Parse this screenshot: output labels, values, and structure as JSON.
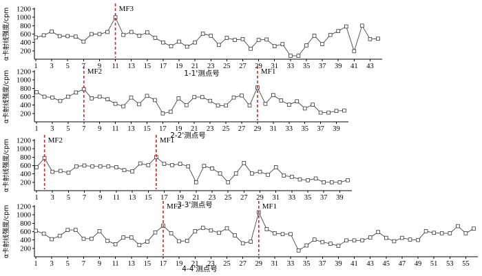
{
  "chart_data": [
    {
      "type": "line",
      "ylabel": "α卡射线强度/cpm",
      "xlabel": "1-1'测点号",
      "ylim": [
        0,
        1200
      ],
      "yticks": [
        200,
        400,
        600,
        800,
        1000,
        1200
      ],
      "x_range": [
        1,
        44
      ],
      "xticks": [
        1,
        3,
        5,
        7,
        9,
        11,
        13,
        15,
        17,
        19,
        21,
        23,
        25,
        27,
        29,
        31,
        33,
        35,
        37,
        39,
        41,
        43
      ],
      "series": [
        {
          "x": [
            1,
            2,
            3,
            4,
            5,
            6,
            7,
            8,
            9,
            10,
            11,
            12,
            13,
            14,
            15,
            16,
            17,
            18,
            19,
            20,
            21,
            22,
            23,
            24,
            25,
            26,
            27,
            28,
            29,
            30,
            31,
            32,
            33,
            34,
            35,
            36,
            37,
            38,
            39,
            40,
            41,
            42,
            43,
            44
          ],
          "values": [
            520,
            570,
            660,
            550,
            550,
            540,
            420,
            600,
            600,
            650,
            1000,
            580,
            650,
            560,
            640,
            510,
            400,
            310,
            420,
            300,
            400,
            610,
            560,
            340,
            510,
            460,
            480,
            250,
            460,
            470,
            310,
            360,
            80,
            80,
            330,
            560,
            360,
            580,
            670,
            780,
            190,
            800,
            480,
            490
          ]
        }
      ],
      "annotations": [
        {
          "label": "MF3",
          "x": 11
        }
      ],
      "grid": false
    },
    {
      "type": "line",
      "ylabel": "α卡射线强度/cpm",
      "xlabel": "2-2'测点号",
      "ylim": [
        0,
        1200
      ],
      "yticks": [
        200,
        400,
        600,
        800,
        1000,
        1200
      ],
      "x_range": [
        1,
        40
      ],
      "xticks": [
        1,
        3,
        5,
        7,
        9,
        11,
        13,
        15,
        17,
        19,
        21,
        23,
        25,
        27,
        29,
        31,
        33,
        35,
        37,
        39
      ],
      "series": [
        {
          "x": [
            1,
            2,
            3,
            4,
            5,
            6,
            7,
            8,
            9,
            10,
            11,
            12,
            13,
            14,
            15,
            16,
            17,
            18,
            19,
            20,
            21,
            22,
            23,
            24,
            25,
            26,
            27,
            28,
            29,
            30,
            31,
            32,
            33,
            34,
            35,
            36,
            37,
            38,
            39,
            40
          ],
          "values": [
            710,
            600,
            580,
            500,
            600,
            700,
            780,
            560,
            600,
            540,
            430,
            370,
            580,
            420,
            620,
            520,
            200,
            240,
            560,
            400,
            590,
            590,
            500,
            390,
            390,
            580,
            630,
            390,
            820,
            430,
            640,
            510,
            410,
            490,
            320,
            410,
            220,
            220,
            260,
            270
          ]
        }
      ],
      "annotations": [
        {
          "label": "MF2",
          "x": 7
        },
        {
          "label": "MF1",
          "x": 29
        }
      ],
      "grid": false
    },
    {
      "type": "line",
      "ylabel": "α卡射线强度/cpm",
      "xlabel": "3-3'测点号",
      "ylim": [
        0,
        1200
      ],
      "yticks": [
        200,
        400,
        600,
        800,
        1000,
        1200
      ],
      "x_range": [
        1,
        40
      ],
      "xticks": [
        1,
        3,
        5,
        7,
        9,
        11,
        13,
        15,
        17,
        19,
        21,
        23,
        25,
        27,
        29,
        31,
        33,
        35,
        37,
        39
      ],
      "series": [
        {
          "x": [
            1,
            2,
            3,
            4,
            5,
            6,
            7,
            8,
            9,
            10,
            11,
            12,
            13,
            14,
            15,
            16,
            17,
            18,
            19,
            20,
            21,
            22,
            23,
            24,
            25,
            26,
            27,
            28,
            29,
            30,
            31,
            32,
            33,
            34,
            35,
            36,
            37,
            38,
            39,
            40
          ],
          "values": [
            560,
            780,
            450,
            470,
            430,
            580,
            600,
            580,
            580,
            580,
            560,
            490,
            460,
            650,
            610,
            800,
            640,
            610,
            640,
            580,
            200,
            590,
            530,
            410,
            200,
            410,
            660,
            410,
            450,
            380,
            560,
            360,
            330,
            270,
            250,
            290,
            200,
            200,
            200,
            250
          ]
        }
      ],
      "annotations": [
        {
          "label": "MF2",
          "x": 2
        },
        {
          "label": "MF1",
          "x": 16
        }
      ],
      "grid": false
    },
    {
      "type": "line",
      "ylabel": "α卡射线强度/cpm",
      "xlabel": "4-4'测点号",
      "ylim": [
        0,
        1200
      ],
      "yticks": [
        200,
        400,
        600,
        800,
        1000,
        1200
      ],
      "x_range": [
        1,
        56
      ],
      "xticks": [
        1,
        3,
        5,
        7,
        9,
        11,
        13,
        15,
        17,
        19,
        21,
        23,
        25,
        27,
        29,
        31,
        33,
        35,
        37,
        39,
        41,
        43,
        45,
        47,
        49,
        51,
        53,
        55
      ],
      "series": [
        {
          "x": [
            1,
            2,
            3,
            4,
            5,
            6,
            7,
            8,
            9,
            10,
            11,
            12,
            13,
            14,
            15,
            16,
            17,
            18,
            19,
            20,
            21,
            22,
            23,
            24,
            25,
            26,
            27,
            28,
            29,
            30,
            31,
            32,
            33,
            34,
            35,
            36,
            37,
            38,
            39,
            40,
            41,
            42,
            43,
            44,
            45,
            46,
            47,
            48,
            49,
            50,
            51,
            52,
            53,
            54,
            55,
            56
          ],
          "values": [
            620,
            550,
            420,
            500,
            640,
            640,
            430,
            430,
            610,
            380,
            300,
            460,
            460,
            280,
            360,
            580,
            740,
            560,
            370,
            380,
            610,
            690,
            630,
            570,
            680,
            510,
            320,
            360,
            1060,
            660,
            560,
            540,
            540,
            150,
            270,
            410,
            350,
            310,
            260,
            390,
            390,
            390,
            460,
            590,
            450,
            370,
            450,
            410,
            400,
            610,
            570,
            560,
            560,
            730,
            560,
            670
          ]
        }
      ],
      "annotations": [
        {
          "label": "MF2",
          "x": 17
        },
        {
          "label": "MF1",
          "x": 29
        }
      ],
      "grid": false
    }
  ]
}
